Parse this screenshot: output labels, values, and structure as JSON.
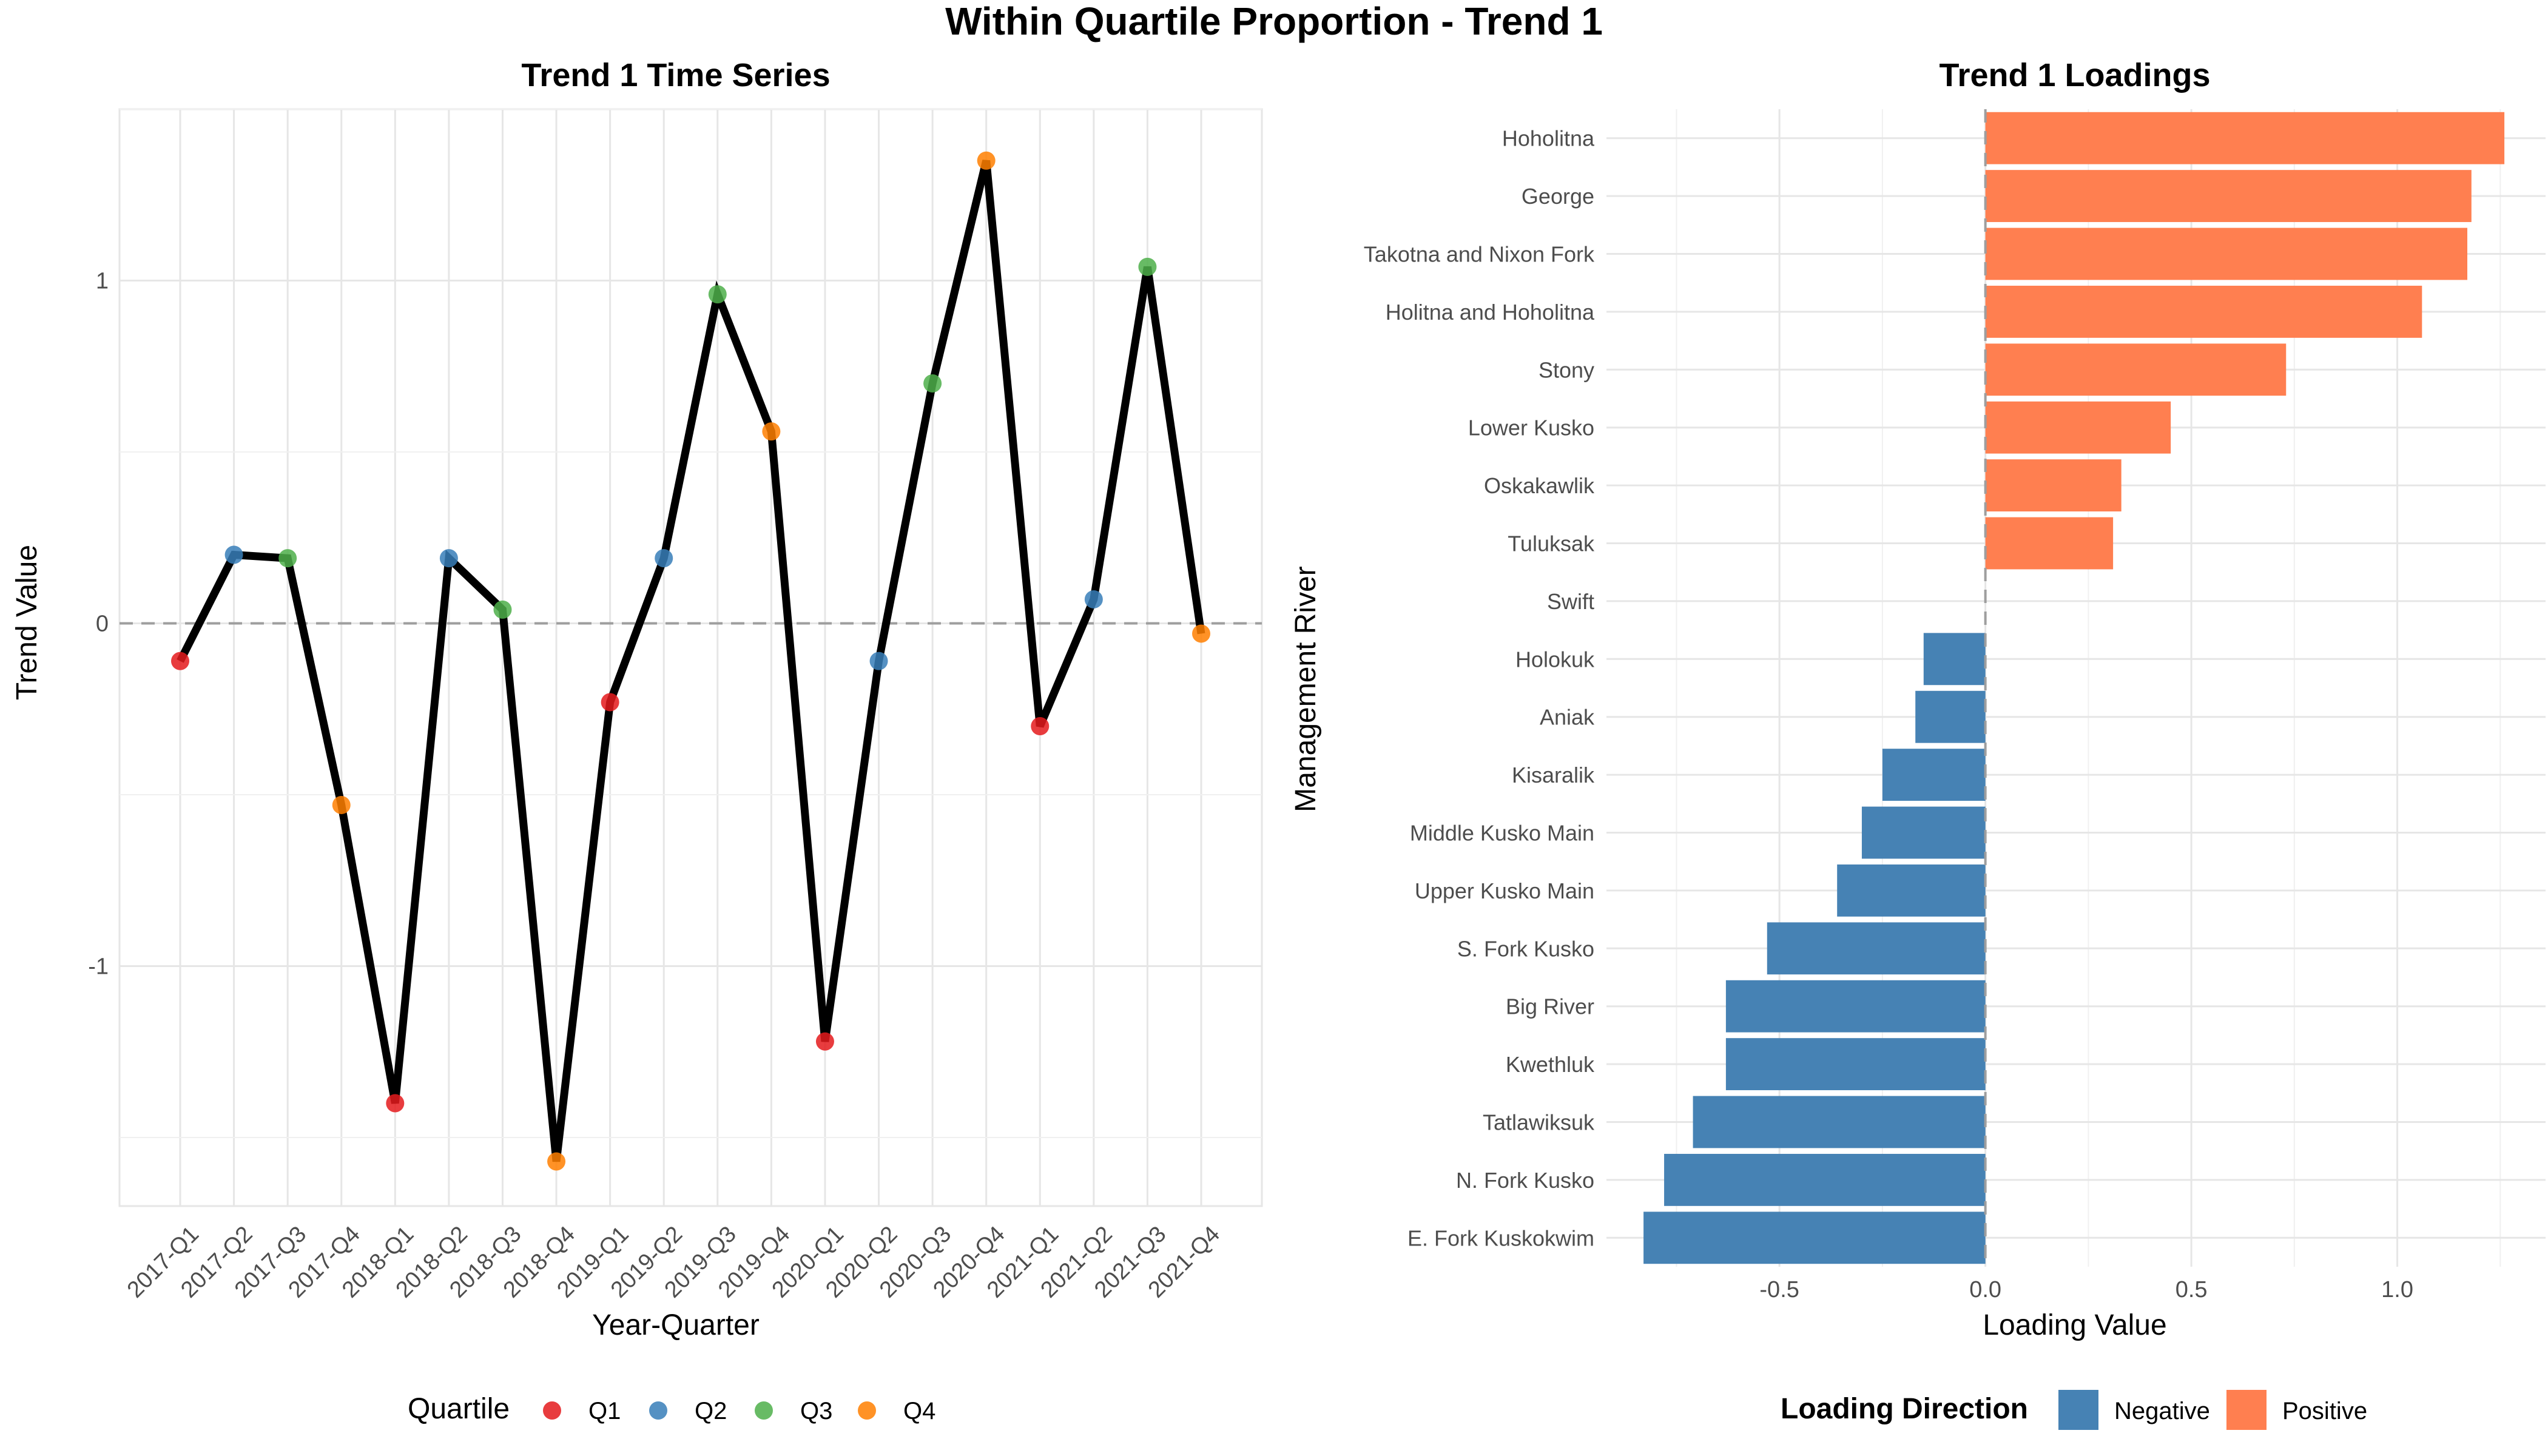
{
  "figure": {
    "title": "Within Quartile Proportion - Trend 1"
  },
  "colors": {
    "line": "#000000",
    "Q1": "#e41a1c",
    "Q2": "#377eb8",
    "Q3": "#4daf4a",
    "Q4": "#ff7f00",
    "negative": "#4682b4",
    "positive": "#ff7f50",
    "grid": "#e6e6e6",
    "zero_line": "#9e9e9e"
  },
  "chart_data": [
    {
      "type": "line",
      "title": "Trend 1 Time Series",
      "xlabel": "Year-Quarter",
      "ylabel": "Trend Value",
      "ylim": [
        -1.7,
        1.5
      ],
      "yticks": [
        -1,
        0,
        1
      ],
      "grid": true,
      "reference_line": 0,
      "categories": [
        "2017-Q1",
        "2017-Q2",
        "2017-Q3",
        "2017-Q4",
        "2018-Q1",
        "2018-Q2",
        "2018-Q3",
        "2018-Q4",
        "2019-Q1",
        "2019-Q2",
        "2019-Q3",
        "2019-Q4",
        "2020-Q1",
        "2020-Q2",
        "2020-Q3",
        "2020-Q4",
        "2021-Q1",
        "2021-Q2",
        "2021-Q3",
        "2021-Q4"
      ],
      "values": [
        -0.11,
        0.2,
        0.19,
        -0.53,
        -1.4,
        0.19,
        0.04,
        -1.57,
        -0.23,
        0.19,
        0.96,
        0.56,
        -1.22,
        -0.11,
        0.7,
        1.35,
        -0.3,
        0.07,
        1.04,
        -0.03
      ],
      "quartile": [
        "Q1",
        "Q2",
        "Q3",
        "Q4",
        "Q1",
        "Q2",
        "Q3",
        "Q4",
        "Q1",
        "Q2",
        "Q3",
        "Q4",
        "Q1",
        "Q2",
        "Q3",
        "Q4",
        "Q1",
        "Q2",
        "Q3",
        "Q4"
      ],
      "legend": {
        "title": "Quartile",
        "position": "bottom",
        "entries": [
          "Q1",
          "Q2",
          "Q3",
          "Q4"
        ]
      }
    },
    {
      "type": "bar",
      "orientation": "horizontal",
      "title": "Trend 1 Loadings",
      "xlabel": "Loading Value",
      "ylabel": "Management River",
      "xlim": [
        -0.92,
        1.36
      ],
      "xticks": [
        -0.5,
        0.0,
        0.5,
        1.0
      ],
      "xtick_labels": [
        "-0.5",
        "0.0",
        "0.5",
        "1.0"
      ],
      "grid": true,
      "reference_line": 0,
      "categories": [
        "Hoholitna",
        "George",
        "Takotna and Nixon Fork",
        "Holitna and Hoholitna",
        "Stony",
        "Lower Kusko",
        "Oskakawlik",
        "Tuluksak",
        "Swift",
        "Holokuk",
        "Aniak",
        "Kisaralik",
        "Middle Kusko Main",
        "Upper Kusko Main",
        "S. Fork Kusko",
        "Big River",
        "Kwethluk",
        "Tatlawiksuk",
        "N. Fork Kusko",
        "E. Fork Kuskokwim"
      ],
      "values": [
        1.26,
        1.18,
        1.17,
        1.06,
        0.73,
        0.45,
        0.33,
        0.31,
        0.0,
        -0.15,
        -0.17,
        -0.25,
        -0.3,
        -0.36,
        -0.53,
        -0.63,
        -0.63,
        -0.71,
        -0.78,
        -0.83
      ],
      "legend": {
        "title": "Loading Direction",
        "position": "bottom",
        "entries": [
          "Negative",
          "Positive"
        ]
      }
    }
  ]
}
